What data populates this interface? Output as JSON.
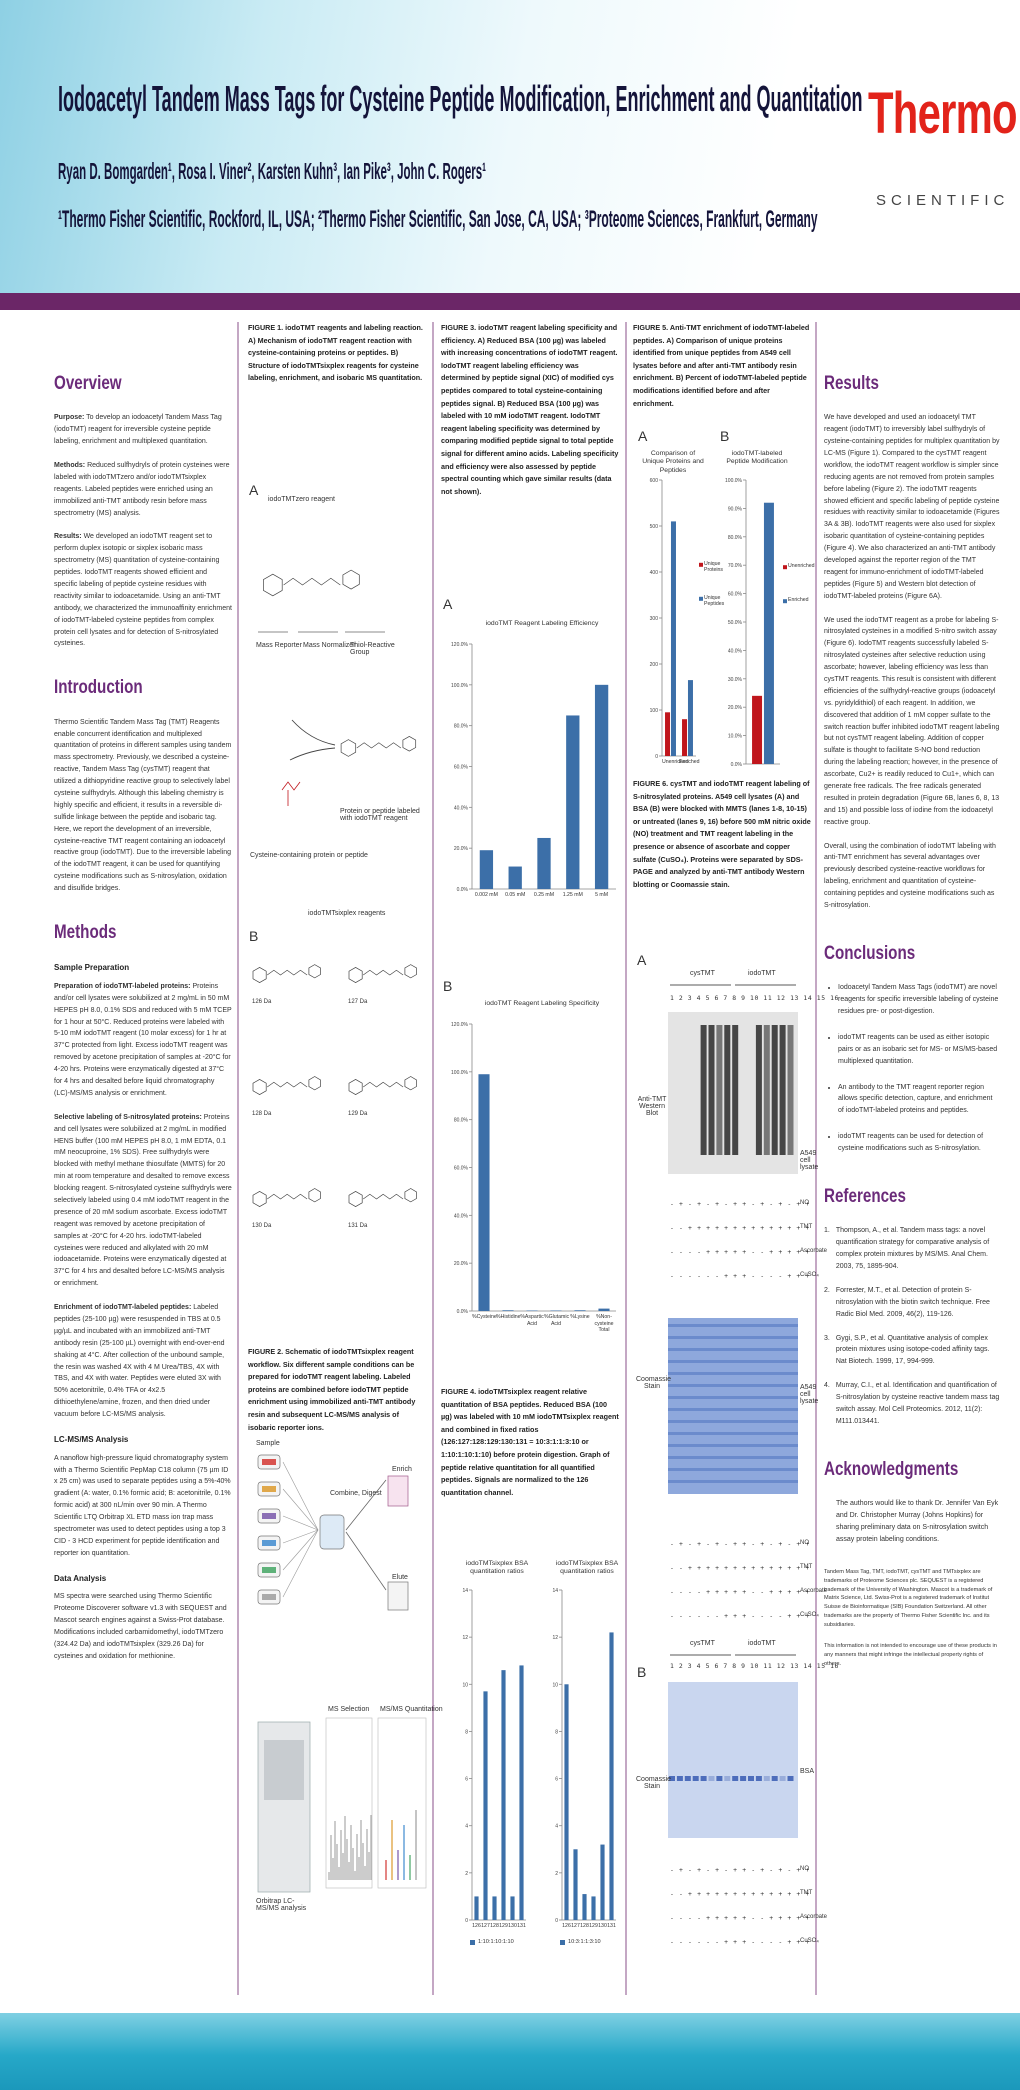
{
  "header": {
    "title": "Iodoacetyl Tandem Mass Tags for Cysteine Peptide Modification, Enrichment and Quantitation",
    "authors": "Ryan D. Bomgarden¹, Rosa I. Viner², Karsten Kuhn³, Ian Pike³, John C. Rogers¹",
    "affiliations": "¹Thermo Fisher Scientific, Rockford, IL, USA; ²Thermo Fisher Scientific, San Jose, CA, USA; ³Proteome Sciences, Frankfurt, Germany",
    "logo_brand": "Thermo",
    "logo_sub": "SCIENTIFIC"
  },
  "overview": {
    "heading": "Overview",
    "paragraphs": [
      {
        "lead": "Purpose:",
        "text": "To develop an iodoacetyl Tandem Mass Tag (iodoTMT) reagent for irreversible cysteine peptide labeling, enrichment and multiplexed quantitation."
      },
      {
        "lead": "Methods:",
        "text": "Reduced sulfhydryls of protein cysteines were labeled with iodoTMTzero and/or iodoTMTsixplex reagents. Labeled peptides were enriched using an immobilized anti-TMT antibody resin before mass spectrometry (MS) analysis."
      },
      {
        "lead": "Results:",
        "text": "We developed an iodoTMT reagent set to perform duplex isotopic or sixplex isobaric mass spectrometry (MS) quantitation of cysteine-containing peptides. IodoTMT reagents showed efficient and specific labeling of peptide cysteine residues with reactivity similar to iodoacetamide. Using an anti-TMT antibody, we characterized the immunoaffinity enrichment of iodoTMT-labeled cysteine peptides from complex protein cell lysates and for detection of S-nitrosylated cysteines."
      }
    ]
  },
  "introduction": {
    "heading": "Introduction",
    "text": "Thermo Scientific Tandem Mass Tag (TMT) Reagents enable concurrent identification and multiplexed quantitation of proteins in different samples using tandem mass spectrometry. Previously, we described a cysteine-reactive, Tandem Mass Tag (cysTMT) reagent that utilized a dithiopyridine reactive group to selectively label cysteine sulfhydryls. Although this labeling chemistry is highly specific and efficient, it results in a reversible di-sulfide linkage between the peptide and isobaric tag. Here, we report the development of an irreversible, cysteine-reactive TMT reagent containing an iodoacetyl reactive group (iodoTMT). Due to the irreversible labeling of the iodoTMT reagent, it can be used for quantifying cysteine modifications such as S-nitrosylation, oxidation and disulfide bridges."
  },
  "methods": {
    "heading": "Methods",
    "subheading": "Sample Preparation",
    "paragraphs": [
      {
        "lead": "Preparation of iodoTMT-labeled proteins:",
        "text": "Proteins and/or cell lysates were solubilized at 2 mg/mL in 50 mM HEPES pH 8.0, 0.1% SDS and reduced with 5 mM TCEP for 1 hour at 50°C. Reduced proteins were labeled with 5-10 mM iodoTMT reagent (10 molar excess) for 1 hr at 37°C protected from light. Excess iodoTMT reagent was removed by acetone precipitation of samples at -20°C for 4-20 hrs. Proteins were enzymatically digested at 37°C for 4 hrs and desalted before liquid chromatography (LC)-MS/MS analysis or enrichment."
      },
      {
        "lead": "Selective labeling of S-nitrosylated proteins:",
        "text": "Proteins and cell lysates were solubilized at 2 mg/mL in modified HENS buffer (100 mM HEPES pH 8.0, 1 mM EDTA, 0.1 mM neocuproine, 1% SDS). Free sulfhydryls were blocked with methyl methane thiosulfate (MMTS) for 20 min at room temperature and desalted to remove excess blocking reagent. S-nitrosylated cysteine sulfhydryls were selectively labeled using 0.4 mM iodoTMT reagent in the presence of 20 mM sodium ascorbate. Excess iodoTMT reagent was removed by acetone precipitation of samples at -20°C for 4-20 hrs. iodoTMT-labeled cysteines were reduced and alkylated with 20 mM iodoacetamide. Proteins were enzymatically digested at 37°C for 4 hrs and desalted before LC-MS/MS analysis or enrichment."
      },
      {
        "lead": "Enrichment of iodoTMT-labeled peptides:",
        "text": "Labeled peptides (25-100 µg) were resuspended in TBS at 0.5 µg/µL and incubated with an immobilized anti-TMT antibody resin (25-100 µL) overnight with end-over-end shaking at 4°C. After collection of the unbound sample, the resin was washed 4X with 4 M Urea/TBS, 4X with TBS, and 4X with water. Peptides were eluted 3X with 50% acetonitrile, 0.4% TFA or 4x2.5 dithioethylene/amine, frozen, and then dried under vacuum before LC-MS/MS analysis."
      }
    ],
    "lc_heading": "LC-MS/MS Analysis",
    "lc_text": "A nanoflow high-pressure liquid chromatography system with a Thermo Scientific PepMap C18 column (75 µm ID x 25 cm) was used to separate peptides using a 5%-40% gradient (A: water, 0.1% formic acid; B: acetonitrile, 0.1% formic acid) at 300 nL/min over 90 min. A Thermo Scientific LTQ Orbitrap XL ETD mass ion trap mass spectrometer was used to detect peptides using a top 3 CID - 3 HCD experiment for peptide identification and reporter ion quantitation.",
    "data_heading": "Data Analysis",
    "data_text": "MS spectra were searched using Thermo Scientific Proteome Discoverer software v1.3 with SEQUEST and Mascot search engines against a Swiss-Prot database. Modifications included carbamidomethyl, iodoTMTzero (324.42 Da) and iodoTMTsixplex (329.26 Da) for cysteines and oxidation for methionine."
  },
  "figure1": {
    "caption": "FIGURE 1. iodoTMT reagents and labeling reaction. A) Mechanism of iodoTMT reagent reaction with cysteine-containing proteins or peptides. B) Structure of iodoTMTsixplex reagents for cysteine labeling, enrichment, and isobaric MS quantitation.",
    "panel_a": "A",
    "reagent_a": "iodoTMTzero reagent",
    "parts": [
      "Mass Reporter",
      "Mass Normalizer",
      "Thiol-Reactive Group"
    ],
    "reactant": "Cysteine-containing protein or peptide",
    "product": "Protein or peptide labeled with iodoTMT reagent",
    "panel_b": "B",
    "reagent_b": "iodoTMTsixplex reagents",
    "isotopes": [
      "126 Da",
      "127 Da",
      "128 Da",
      "129 Da",
      "130 Da",
      "131 Da"
    ]
  },
  "figure2": {
    "caption": "FIGURE 2. Schematic of iodoTMTsixplex reagent workflow. Six different sample conditions can be prepared for iodoTMT reagent labeling. Labeled proteins are combined before iodoTMT peptide enrichment using immobilized anti-TMT antibody resin and subsequent LC-MS/MS analysis of isobaric reporter ions.",
    "steps": [
      "Sample",
      "Combine, Digest",
      "Enrich",
      "Elute"
    ],
    "instrument": "Orbitrap LC-MS/MS analysis",
    "ms_labels": [
      "MS Selection",
      "MS/MS Quantitation"
    ]
  },
  "figure3": {
    "caption": "FIGURE 3. iodoTMT reagent labeling specificity and efficiency. A) Reduced BSA (100 µg) was labeled with increasing concentrations of iodoTMT reagent. IodoTMT reagent labeling efficiency was determined by peptide signal (XIC) of modified cys peptides compared to total cysteine-containing peptides signal. B) Reduced BSA (100 µg) was labeled with 10 mM iodoTMT reagent. IodoTMT reagent labeling specificity was determined by comparing modified peptide signal to total peptide signal for different amino acids. Labeling specificity and efficiency were also assessed by peptide spectral counting which gave similar results (data not shown).",
    "panels": [
      "A",
      "B"
    ]
  },
  "figure4": {
    "caption": "FIGURE 4. iodoTMTsixplex reagent relative quantitation of BSA peptides. Reduced BSA (100 µg) was labeled with 10 mM iodoTMTsixplex reagent and combined in fixed ratios (126:127:128:129:130:131 = 10:3:1:1:3:10 or 1:10:1:10:1:10) before protein digestion. Graph of peptide relative quantitation for all quantified peptides. Signals are normalized to the 126 quantitation channel."
  },
  "figure5": {
    "caption": "FIGURE 5. Anti-TMT enrichment of iodoTMT-labeled peptides. A) Comparison of unique proteins identified from unique peptides from A549 cell lysates before and after anti-TMT antibody resin enrichment. B) Percent of iodoTMT-labeled peptide modifications identified before and after enrichment.",
    "panels": [
      "A",
      "B"
    ]
  },
  "figure6": {
    "caption": "FIGURE 6. cysTMT and iodoTMT reagent labeling of S-nitrosylated proteins. A549 cell lysates (A) and BSA (B) were blocked with MMTS (lanes 1-8, 10-15) or untreated (lanes 9, 16) before 500 mM nitric oxide (NO) treatment and TMT reagent labeling in the presence or absence of ascorbate and copper sulfate (CuSO₄). Proteins were separated by SDS-PAGE and analyzed by anti-TMT antibody Western blotting or Coomassie stain.",
    "panels": [
      "A",
      "B"
    ],
    "groups": [
      "cysTMT",
      "iodoTMT"
    ],
    "lanes": "1 2 3 4 5 6 7 8 9 10 11 12 13 14 15 16",
    "western": "Anti-TMT Western Blot",
    "lysate": "A549 cell lysate",
    "coomassie": "Coomassie Stain",
    "bsa": "BSA",
    "conditions": [
      {
        "name": "NO",
        "pattern": "- + - + - + - + + - + - + - + +"
      },
      {
        "name": "TMT",
        "pattern": "- - + + + + + + + + + + + + + +"
      },
      {
        "name": "Ascorbate",
        "pattern": "- - - - + + + + + - - + + + + +"
      },
      {
        "name": "CuSO₄",
        "pattern": "- - - - - - + + + - - - - + + +"
      }
    ]
  },
  "results": {
    "heading": "Results",
    "paragraphs": [
      "We have developed and used an iodoacetyl TMT reagent (iodoTMT) to irreversibly label sulfhydryls of cysteine-containing peptides for multiplex quantitation by LC-MS (Figure 1). Compared to the cysTMT reagent workflow, the iodoTMT reagent workflow is simpler since reducing agents are not removed from protein samples before labeling (Figure 2). The iodoTMT reagents showed efficient and specific labeling of peptide cysteine residues with reactivity similar to iodoacetamide (Figures 3A & 3B). IodoTMT reagents were also used for sixplex isobaric quantitation of cysteine-containing peptides (Figure 4). We also characterized an anti-TMT antibody developed against the reporter region of the TMT reagent for immuno-enrichment of iodoTMT-labeled peptides (Figure 5) and Western blot detection of iodoTMT-labeled proteins (Figure 6A).",
      "We used the iodoTMT reagent as a probe for labeling S-nitrosylated cysteines in a modified S-nitro switch assay (Figure 6). IodoTMT reagents successfully labeled S-nitrosylated cysteines after selective reduction using ascorbate; however, labeling efficiency was less than cysTMT reagents. This result is consistent with different efficiencies of the sulfhydryl-reactive groups (iodoacetyl vs. pyridyldithiol) of each reagent. In addition, we discovered that addition of 1 mM copper sulfate to the switch reaction buffer inhibited iodoTMT reagent labeling but not cysTMT reagent labeling. Addition of copper sulfate is thought to facilitate S-NO bond reduction during the labeling reaction; however, in the presence of ascorbate, Cu2+ is readily reduced to Cu1+, which can generate free radicals. The free radicals generated resulted in protein degradation (Figure 6B, lanes 6, 8, 13 and 15) and possible loss of iodine from the iodoacetyl reactive group.",
      "Overall, using the combination of iodoTMT labeling with anti-TMT enrichment has several advantages over previously described cysteine-reactive workflows for labeling, enrichment and quantitation of cysteine-containing peptides and cysteine modifications such as S-nitrosylation."
    ]
  },
  "conclusions": {
    "heading": "Conclusions",
    "bullets": [
      "Iodoacetyl Tandem Mass Tags (iodoTMT) are novel reagents for specific irreversible labeling of cysteine residues pre- or post-digestion.",
      "iodoTMT reagents can be used as either isotopic pairs or as an isobaric set for MS- or MS/MS-based multiplexed quantitation.",
      "An antibody to the TMT reagent reporter region allows specific detection, capture, and enrichment of iodoTMT-labeled proteins and peptides.",
      "iodoTMT reagents can be used for detection of cysteine modifications such as S-nitrosylation."
    ]
  },
  "references": {
    "heading": "References",
    "items": [
      {
        "num": "1.",
        "text": "Thompson, A., et al. Tandem mass tags: a novel quantification strategy for comparative analysis of complex protein mixtures by MS/MS. Anal Chem. 2003, 75, 1895-904."
      },
      {
        "num": "2.",
        "text": "Forrester, M.T., et al. Detection of protein S-nitrosylation with the biotin switch technique. Free Radic Biol Med. 2009, 46(2), 119-126."
      },
      {
        "num": "3.",
        "text": "Gygi, S.P., et al. Quantitative analysis of complex protein mixtures using isotope-coded affinity tags. Nat Biotech. 1999, 17, 994-999."
      },
      {
        "num": "4.",
        "text": "Murray, C.I., et al. Identification and quantification of S-nitrosylation by cysteine reactive tandem mass tag switch assay. Mol Cell Proteomics. 2012, 11(2): M111.013441."
      }
    ]
  },
  "acknowledgments": {
    "heading": "Acknowledgments",
    "text": "The authors would like to thank Dr. Jennifer Van Eyk and Dr. Christopher Murray (Johns Hopkins) for sharing preliminary data on S-nitrosylation switch assay protein labeling conditions."
  },
  "disclaimer": [
    "Tandem Mass Tag, TMT, iodoTMT, cysTMT and TMTsixplex are trademarks of Proteome Sciences plc. SEQUEST is a registered trademark of the University of Washington. Mascot is a trademark of Matrix Science, Ltd. Swiss-Prot is a registered trademark of Institut Suisse de Bioinformatique (SIB) Foundation Switzerland. All other trademarks are the property of Thermo Fisher Scientific Inc. and its subsidiaries.",
    "This information is not intended to encourage use of these products in any manners that might infringe the intellectual property rights of others."
  ],
  "chart_data": [
    {
      "type": "bar",
      "title": "iodoTMT Reagent Labeling Efficiency",
      "categories": [
        "0.002 mM",
        "0.05 mM",
        "0.25 mM",
        "1.25 mM",
        "5 mM"
      ],
      "values": [
        19,
        11,
        25,
        85,
        100
      ],
      "color": "#3c6fa8",
      "ylim": [
        0,
        120
      ],
      "yticks": [
        {
          "value": 0,
          "label": "0.0%"
        },
        {
          "value": 20,
          "label": "20.0%"
        },
        {
          "value": 40,
          "label": "40.0%"
        },
        {
          "value": 60,
          "label": "60.0%"
        },
        {
          "value": 80,
          "label": "80.0%"
        },
        {
          "value": 100,
          "label": "100.0%"
        },
        {
          "value": 120,
          "label": "120.0%"
        }
      ]
    },
    {
      "type": "bar",
      "title": "iodoTMT Reagent Labeling Specificity",
      "categories": [
        "%Cysteine",
        "%Histidine",
        "%Aspartic Acid",
        "%Glutamic Acid",
        "%Lysine",
        "%Non-cysteine Total"
      ],
      "values": [
        99,
        0.3,
        0.2,
        0.2,
        0.3,
        1
      ],
      "color": "#3c6fa8",
      "ylim": [
        0,
        120
      ],
      "yticks": [
        {
          "value": 0,
          "label": "0.0%"
        },
        {
          "value": 20,
          "label": "20.0%"
        },
        {
          "value": 40,
          "label": "40.0%"
        },
        {
          "value": 60,
          "label": "60.0%"
        },
        {
          "value": 80,
          "label": "80.0%"
        },
        {
          "value": 100,
          "label": "100.0%"
        },
        {
          "value": 120,
          "label": "120.0%"
        }
      ]
    },
    {
      "type": "bar",
      "title": "iodoTMTsixplex BSA quantitation ratios",
      "categories": [
        "126",
        "127",
        "128",
        "129",
        "130",
        "131"
      ],
      "series": [
        {
          "name": "1:10:1:10:1:10",
          "color": "#3c6fa8",
          "values": [
            1,
            9.7,
            1,
            10.6,
            1,
            10.8
          ]
        }
      ],
      "ylim": [
        0,
        14
      ],
      "yticks": [
        0,
        2,
        4,
        6,
        8,
        10,
        12,
        14
      ]
    },
    {
      "type": "bar",
      "title": "iodoTMTsixplex BSA quantitation ratios",
      "categories": [
        "126",
        "127",
        "128",
        "129",
        "130",
        "131"
      ],
      "series": [
        {
          "name": "10:3:1:1:3:10",
          "color": "#3c6fa8",
          "values": [
            10,
            3,
            1.1,
            1,
            3.2,
            12.2
          ]
        }
      ],
      "ylim": [
        0,
        14
      ],
      "yticks": [
        0,
        2,
        4,
        6,
        8,
        10,
        12,
        14
      ]
    },
    {
      "type": "bar",
      "title": "Comparison of Unique Proteins and Peptides",
      "categories": [
        "Unenriched",
        "Enriched"
      ],
      "series": [
        {
          "name": "Unique Proteins",
          "color": "#c0161c",
          "values": [
            95,
            80
          ]
        },
        {
          "name": "Unique Peptides",
          "color": "#3c6fa8",
          "values": [
            510,
            165
          ]
        }
      ],
      "ylim": [
        0,
        600
      ],
      "yticks": [
        0,
        100,
        200,
        300,
        400,
        500,
        600
      ]
    },
    {
      "type": "bar",
      "title": "iodoTMT-labeled Peptide Modification",
      "categories": [
        null
      ],
      "series": [
        {
          "name": "Unenriched",
          "color": "#c0161c",
          "values": [
            24
          ]
        },
        {
          "name": "Enriched",
          "color": "#3c6fa8",
          "values": [
            92
          ]
        }
      ],
      "ylim": [
        0,
        100
      ],
      "yticks": [
        {
          "value": 0,
          "label": "0.0%"
        },
        {
          "value": 10,
          "label": "10.0%"
        },
        {
          "value": 20,
          "label": "20.0%"
        },
        {
          "value": 30,
          "label": "30.0%"
        },
        {
          "value": 40,
          "label": "40.0%"
        },
        {
          "value": 50,
          "label": "50.0%"
        },
        {
          "value": 60,
          "label": "60.0%"
        },
        {
          "value": 70,
          "label": "70.0%"
        },
        {
          "value": 80,
          "label": "80.0%"
        },
        {
          "value": 90,
          "label": "90.0%"
        },
        {
          "value": 100,
          "label": "100.0%"
        }
      ]
    }
  ]
}
